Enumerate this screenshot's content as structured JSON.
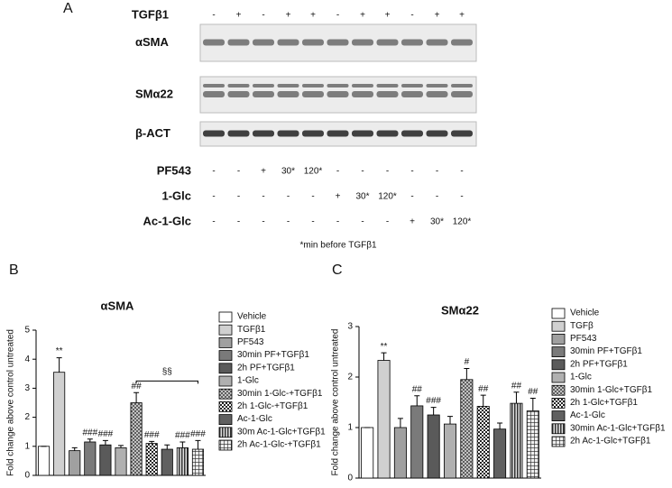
{
  "panel_labels": [
    "A",
    "B",
    "C"
  ],
  "blot": {
    "top_row": {
      "label": "TGFβ1",
      "values": [
        "-",
        "+",
        "-",
        "+",
        "+",
        "-",
        "+",
        "+",
        "-",
        "+",
        "+"
      ]
    },
    "bands": [
      "αSMA",
      "SMα22",
      "β-ACT"
    ],
    "bottom_rows": [
      {
        "label": "PF543",
        "values": [
          "-",
          "-",
          "+",
          "30*",
          "120*",
          "-",
          "-",
          "-",
          "-",
          "-",
          "-"
        ]
      },
      {
        "label": "1-Glc",
        "values": [
          "-",
          "-",
          "-",
          "-",
          "-",
          "+",
          "30*",
          "120*",
          "-",
          "-",
          "-"
        ]
      },
      {
        "label": "Ac-1-Glc",
        "values": [
          "-",
          "-",
          "-",
          "-",
          "-",
          "-",
          "-",
          "-",
          "+",
          "30*",
          "120*"
        ]
      }
    ],
    "footnote": "*min before TGFβ1"
  },
  "chart_data": [
    {
      "type": "bar",
      "title": "αSMA",
      "y_label": "Fold change above control untreated",
      "categories": [
        "Vehicle",
        "TGFβ1",
        "PF543",
        "30min PF+TGFβ1",
        "2h PF+TGFβ1",
        "1-Glc",
        "30min 1-Glc-+TGFβ1",
        "2h 1-Glc-+TGFβ1",
        "Ac-1-Glc",
        "30m Ac-1-Glc+TGFβ1",
        "2h Ac-1-Glc-+TGFβ1"
      ],
      "values": [
        1.0,
        3.55,
        0.85,
        1.15,
        1.05,
        0.95,
        2.5,
        1.1,
        0.9,
        0.95,
        0.9
      ],
      "errors": [
        0,
        0.5,
        0.1,
        0.1,
        0.15,
        0.08,
        0.35,
        0.07,
        0.15,
        0.2,
        0.3
      ],
      "annotations": [
        null,
        "**",
        null,
        "###",
        "###",
        null,
        "##",
        "###",
        null,
        "###",
        "###"
      ],
      "bracket_label": "§§",
      "colors": [
        "#ffffff",
        "#d0d0d0",
        "#a0a0a0",
        "#7a7a7a",
        "#5a5a5a",
        "#b0b0b0",
        "url(#cross)",
        "url(#check)",
        "#606060",
        "url(#vstripe)",
        "url(#grid)"
      ],
      "ylim": [
        0,
        5
      ],
      "yticks": [
        0,
        1,
        2,
        3,
        4,
        5
      ]
    },
    {
      "type": "bar",
      "title": "SMα22",
      "y_label": "Fold change above control untreated",
      "categories": [
        "Vehicle",
        "TGFβ",
        "PF543",
        "30min PF+TGFβ1",
        "2h PF+TGFβ1",
        "1-Glc",
        "30min 1-Glc+TGFβ1",
        "2h 1-Glc+TGFβ1",
        "Ac-1-Glc",
        "30min Ac-1-Glc+TGFβ1",
        "2h Ac-1-Glc+TGFβ1"
      ],
      "values": [
        1.0,
        2.33,
        1.0,
        1.43,
        1.25,
        1.07,
        1.95,
        1.42,
        0.97,
        1.48,
        1.33
      ],
      "errors": [
        0,
        0.15,
        0.18,
        0.2,
        0.15,
        0.15,
        0.22,
        0.22,
        0.12,
        0.22,
        0.25
      ],
      "annotations": [
        null,
        "**",
        null,
        "##",
        "###",
        null,
        "#",
        "##",
        null,
        "##",
        "##"
      ],
      "colors": [
        "#ffffff",
        "#d0d0d0",
        "#a0a0a0",
        "#7a7a7a",
        "#5a5a5a",
        "#b0b0b0",
        "url(#cross)",
        "url(#check)",
        "#606060",
        "url(#vstripe)",
        "url(#grid)"
      ],
      "ylim": [
        0,
        3
      ],
      "yticks": [
        0,
        1,
        2,
        3
      ]
    }
  ]
}
